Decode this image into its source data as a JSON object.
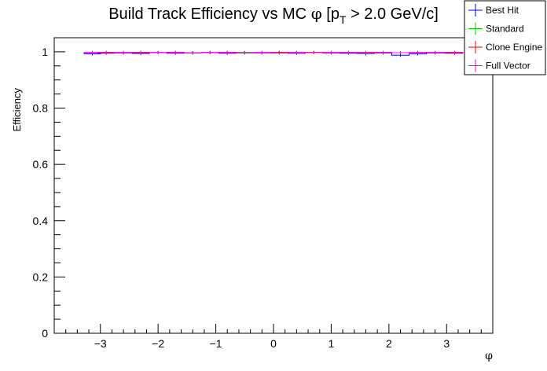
{
  "chart_data": {
    "type": "line",
    "title_main": "Build Track Efficiency vs MC",
    "title_phi": "φ",
    "title_bracket_open": "[p",
    "title_sub": "T",
    "title_rest": " > 2.0 GeV/c]",
    "xlabel": "φ",
    "ylabel": "Efficiency",
    "xlim": [
      -3.8,
      3.8
    ],
    "ylim": [
      0,
      1.05
    ],
    "x_ticks": [
      -3,
      -2,
      -1,
      0,
      1,
      2,
      3
    ],
    "x_tick_labels": [
      "−3",
      "−2",
      "−1",
      "0",
      "1",
      "2",
      "3"
    ],
    "y_ticks": [
      0,
      0.2,
      0.4,
      0.6,
      0.8,
      1
    ],
    "y_tick_labels": [
      "0",
      "0.2",
      "0.4",
      "0.6",
      "0.8",
      "1"
    ],
    "legend_placement": "top-right",
    "x": [
      -3.14,
      -2.9,
      -2.6,
      -2.3,
      -2.0,
      -1.7,
      -1.4,
      -1.1,
      -0.8,
      -0.5,
      -0.2,
      0.1,
      0.4,
      0.7,
      1.0,
      1.3,
      1.6,
      1.9,
      2.2,
      2.5,
      2.8,
      3.14
    ],
    "series": [
      {
        "name": "Best Hit",
        "color": "#0000ff",
        "values": [
          0.993,
          0.995,
          0.996,
          0.994,
          0.997,
          0.995,
          0.996,
          0.997,
          0.995,
          0.996,
          0.997,
          0.996,
          0.995,
          0.997,
          0.996,
          0.995,
          0.994,
          0.996,
          0.988,
          0.993,
          0.996,
          0.995
        ]
      },
      {
        "name": "Standard",
        "color": "#00cc00",
        "values": [
          0.997,
          0.998,
          0.997,
          0.998,
          0.997,
          0.998,
          0.997,
          0.998,
          0.997,
          0.998,
          0.997,
          0.998,
          0.997,
          0.998,
          0.997,
          0.998,
          0.997,
          0.998,
          0.997,
          0.998,
          0.997,
          0.998
        ]
      },
      {
        "name": "Clone Engine",
        "color": "#ff0000",
        "values": [
          0.997,
          0.998,
          0.996,
          0.998,
          0.997,
          0.998,
          0.997,
          0.997,
          0.998,
          0.997,
          0.996,
          0.998,
          0.997,
          0.998,
          0.997,
          0.996,
          0.998,
          0.997,
          0.997,
          0.998,
          0.997,
          0.998
        ]
      },
      {
        "name": "Full Vector",
        "color": "#ff00ff",
        "values": [
          0.998,
          0.997,
          0.998,
          0.997,
          0.998,
          0.998,
          0.997,
          0.998,
          0.998,
          0.997,
          0.998,
          0.997,
          0.998,
          0.997,
          0.998,
          0.998,
          0.997,
          0.998,
          0.997,
          0.998,
          0.998,
          0.997
        ]
      }
    ]
  }
}
